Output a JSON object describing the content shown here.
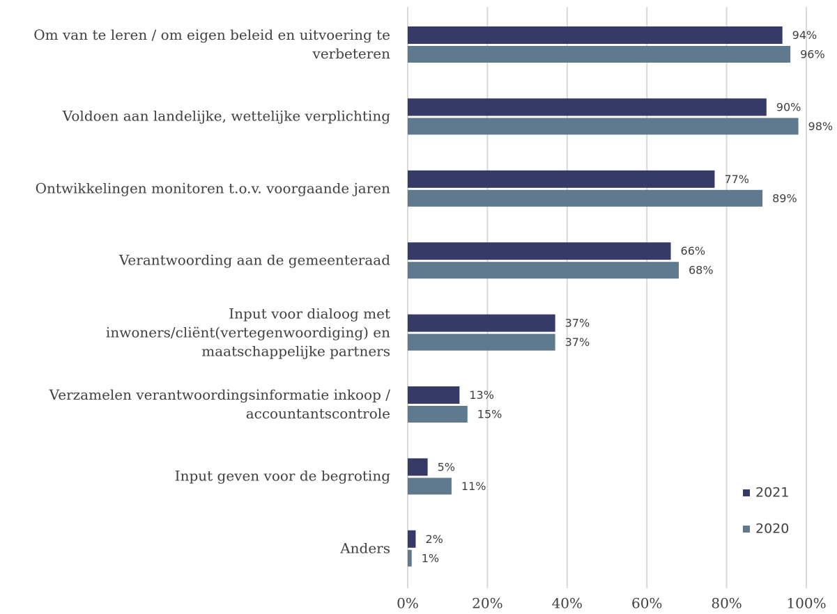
{
  "chart_data": {
    "type": "bar",
    "orientation": "horizontal",
    "categories": [
      "Om van te leren / om eigen beleid en uitvoering te verbeteren",
      "Voldoen aan landelijke, wettelijke verplichting",
      "Ontwikkelingen monitoren t.o.v. voorgaande jaren",
      "Verantwoording aan de gemeenteraad",
      "Input voor dialoog met inwoners/cliënt(vertegenwoordiging) en maatschappelijke partners",
      "Verzamelen verantwoordingsinformatie inkoop / accountantscontrole",
      "Input geven voor de begroting",
      "Anders"
    ],
    "series": [
      {
        "name": "2021",
        "color": "#363a66",
        "values": [
          94,
          90,
          77,
          66,
          37,
          13,
          5,
          2
        ],
        "value_labels": [
          "94%",
          "90%",
          "77%",
          "66%",
          "37%",
          "13%",
          "5%",
          "2%"
        ]
      },
      {
        "name": "2020",
        "color": "#5f7a8f",
        "values": [
          96,
          98,
          89,
          68,
          37,
          15,
          11,
          1
        ],
        "value_labels": [
          "96%",
          "98%",
          "89%",
          "68%",
          "37%",
          "15%",
          "11%",
          "1%"
        ]
      }
    ],
    "xlim": [
      0,
      100
    ],
    "xticks": [
      {
        "value": 0,
        "label": "0%"
      },
      {
        "value": 20,
        "label": "20%"
      },
      {
        "value": 40,
        "label": "40%"
      },
      {
        "value": 60,
        "label": "60%"
      },
      {
        "value": 80,
        "label": "80%"
      },
      {
        "value": 100,
        "label": "100%"
      }
    ],
    "grid": true,
    "legend": "lower right"
  }
}
